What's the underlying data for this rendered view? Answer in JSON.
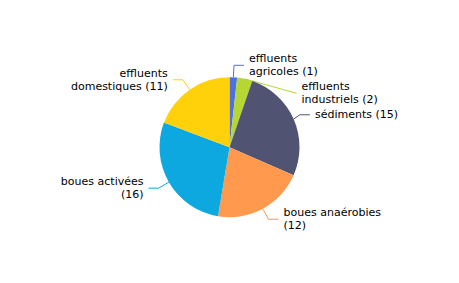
{
  "chart_data": {
    "type": "pie",
    "categories": [
      "effluents\nagricoles (1)",
      "effluents\nindustriels (2)",
      "sédiments (15)",
      "boues anaérobies\n(12)",
      "boues activées\n(16)",
      "effluents\ndomestiques (11)"
    ],
    "values": [
      1,
      2,
      15,
      12,
      16,
      11
    ]
  }
}
